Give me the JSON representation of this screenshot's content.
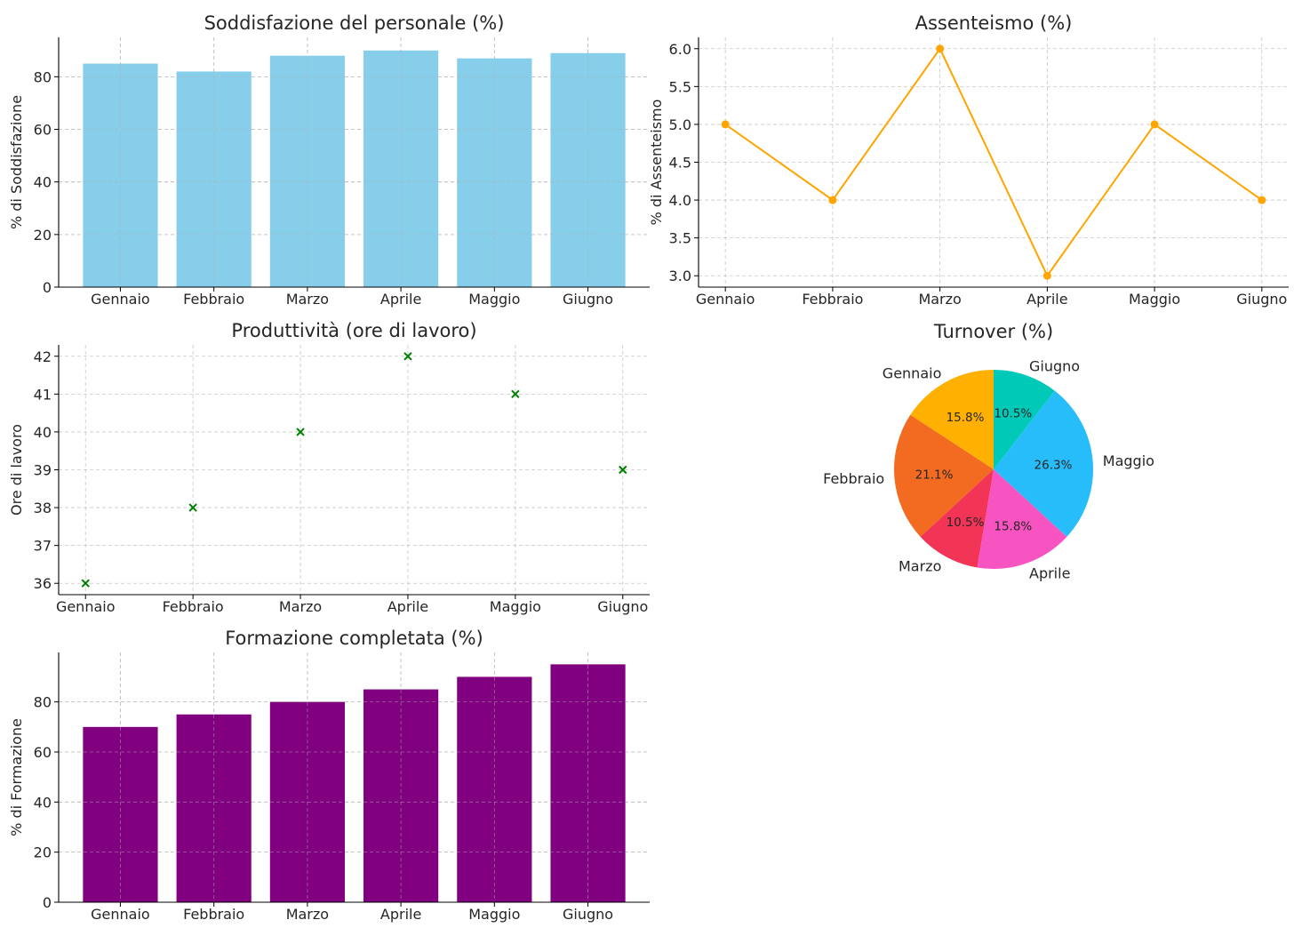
{
  "chart_data": [
    {
      "type": "bar",
      "title": "Soddisfazione del personale (%)",
      "ylabel": "% di Soddisfazione",
      "xlabel": "",
      "categories": [
        "Gennaio",
        "Febbraio",
        "Marzo",
        "Aprile",
        "Maggio",
        "Giugno"
      ],
      "values": [
        85,
        82,
        88,
        90,
        87,
        89
      ],
      "ylim": [
        0,
        95
      ],
      "yticks": [
        0,
        20,
        40,
        60,
        80
      ],
      "color": "#87ceeb",
      "grid": true
    },
    {
      "type": "line",
      "title": "Assenteismo (%)",
      "ylabel": "% di Assenteismo",
      "xlabel": "",
      "categories": [
        "Gennaio",
        "Febbraio",
        "Marzo",
        "Aprile",
        "Maggio",
        "Giugno"
      ],
      "values": [
        5,
        4,
        6,
        3,
        5,
        4
      ],
      "ylim": [
        2.85,
        6.15
      ],
      "yticks": [
        3.0,
        3.5,
        4.0,
        4.5,
        5.0,
        5.5,
        6.0
      ],
      "ytick_labels": [
        "3.0",
        "3.5",
        "4.0",
        "4.5",
        "5.0",
        "5.5",
        "6.0"
      ],
      "color": "#ffa500",
      "marker": "circle",
      "grid": true
    },
    {
      "type": "scatter",
      "title": "Produttività (ore di lavoro)",
      "ylabel": "Ore di lavoro",
      "xlabel": "",
      "categories": [
        "Gennaio",
        "Febbraio",
        "Marzo",
        "Aprile",
        "Maggio",
        "Giugno"
      ],
      "values": [
        36,
        38,
        40,
        42,
        41,
        39
      ],
      "ylim": [
        35.7,
        42.3
      ],
      "yticks": [
        36,
        37,
        38,
        39,
        40,
        41,
        42
      ],
      "color": "#008000",
      "marker": "x",
      "grid": true
    },
    {
      "type": "pie",
      "title": "Turnover (%)",
      "categories": [
        "Gennaio",
        "Febbraio",
        "Marzo",
        "Aprile",
        "Maggio",
        "Giugno"
      ],
      "values": [
        3,
        4,
        2,
        3,
        5,
        2
      ],
      "pct_labels": [
        "15.8%",
        "21.1%",
        "10.5%",
        "15.8%",
        "26.3%",
        "10.5%"
      ],
      "colors": [
        "#ffb000",
        "#f26b21",
        "#f23456",
        "#f754c2",
        "#27bdfb",
        "#00c9b8"
      ],
      "start_angle": 90,
      "direction": "counterclockwise"
    },
    {
      "type": "bar",
      "title": "Formazione completata (%)",
      "ylabel": "% di Formazione",
      "xlabel": "",
      "categories": [
        "Gennaio",
        "Febbraio",
        "Marzo",
        "Aprile",
        "Maggio",
        "Giugno"
      ],
      "values": [
        70,
        75,
        80,
        85,
        90,
        95
      ],
      "ylim": [
        0,
        99.75
      ],
      "yticks": [
        0,
        20,
        40,
        60,
        80
      ],
      "color": "#800080",
      "grid": true
    }
  ]
}
